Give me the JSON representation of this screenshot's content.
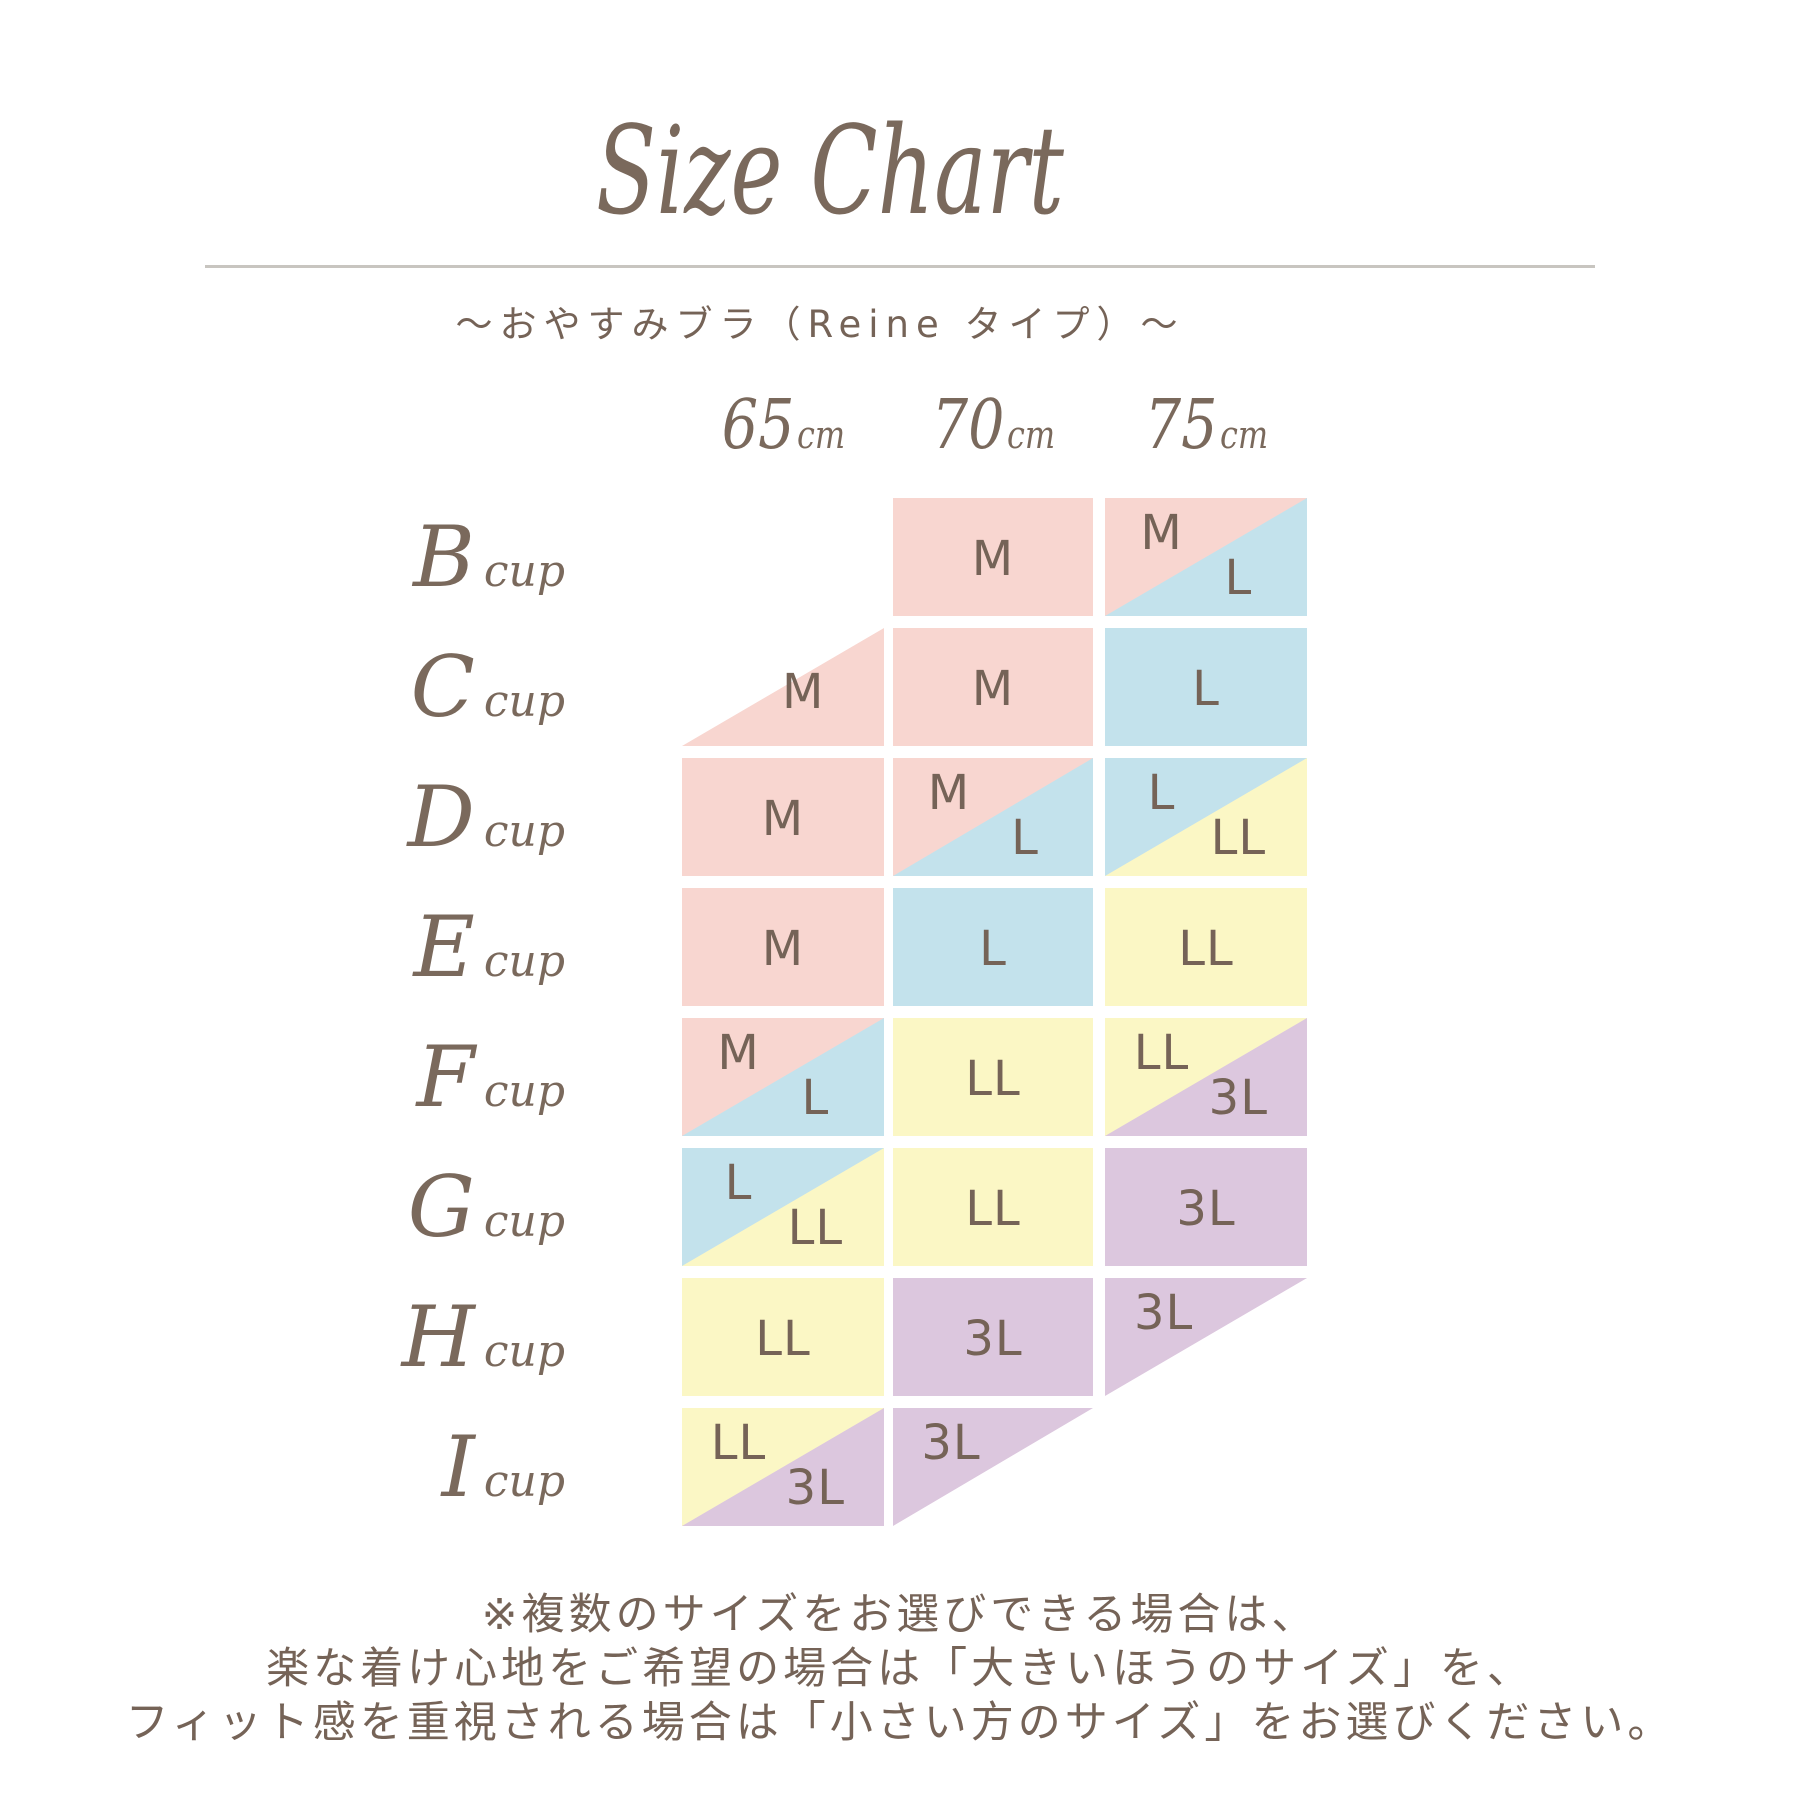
{
  "header": {
    "title": "Size Chart",
    "subtitle": "〜おやすみブラ（Reine タイプ）〜"
  },
  "chart_data": {
    "type": "table",
    "title": "Size Chart",
    "subtitle": "〜おやすみブラ（Reine タイプ）〜",
    "band_sizes": [
      {
        "num": "65",
        "unit": "cm"
      },
      {
        "num": "70",
        "unit": "cm"
      },
      {
        "num": "75",
        "unit": "cm"
      }
    ],
    "size_colors": {
      "M": "#f8d6d0",
      "L": "#c3e2ec",
      "LL": "#fbf7c5",
      "3L": "#dcc7de"
    },
    "cup_rows": [
      {
        "letter": "B",
        "word": "cup",
        "cells": [
          {
            "type": "empty"
          },
          {
            "type": "full",
            "size": "M"
          },
          {
            "type": "split",
            "size_a": "M",
            "size_b": "L"
          }
        ]
      },
      {
        "letter": "C",
        "word": "cup",
        "cells": [
          {
            "type": "tri-br",
            "size": "M"
          },
          {
            "type": "full",
            "size": "M"
          },
          {
            "type": "full",
            "size": "L"
          }
        ]
      },
      {
        "letter": "D",
        "word": "cup",
        "cells": [
          {
            "type": "full",
            "size": "M"
          },
          {
            "type": "split",
            "size_a": "M",
            "size_b": "L"
          },
          {
            "type": "split",
            "size_a": "L",
            "size_b": "LL"
          }
        ]
      },
      {
        "letter": "E",
        "word": "cup",
        "cells": [
          {
            "type": "full",
            "size": "M"
          },
          {
            "type": "full",
            "size": "L"
          },
          {
            "type": "full",
            "size": "LL"
          }
        ]
      },
      {
        "letter": "F",
        "word": "cup",
        "cells": [
          {
            "type": "split",
            "size_a": "M",
            "size_b": "L"
          },
          {
            "type": "full",
            "size": "LL"
          },
          {
            "type": "split",
            "size_a": "LL",
            "size_b": "3L"
          }
        ]
      },
      {
        "letter": "G",
        "word": "cup",
        "cells": [
          {
            "type": "split",
            "size_a": "L",
            "size_b": "LL"
          },
          {
            "type": "full",
            "size": "LL"
          },
          {
            "type": "full",
            "size": "3L"
          }
        ]
      },
      {
        "letter": "H",
        "word": "cup",
        "cells": [
          {
            "type": "full",
            "size": "LL"
          },
          {
            "type": "full",
            "size": "3L"
          },
          {
            "type": "tri-tl",
            "size": "3L"
          }
        ]
      },
      {
        "letter": "I",
        "word": "cup",
        "cells": [
          {
            "type": "split",
            "size_a": "LL",
            "size_b": "3L"
          },
          {
            "type": "tri-tl",
            "size": "3L"
          },
          {
            "type": "empty"
          }
        ]
      }
    ]
  },
  "footer": {
    "lines": [
      "※複数のサイズをお選びできる場合は、",
      "楽な着け心地をご希望の場合は「大きいほうのサイズ」を、",
      "フィット感を重視される場合は「小さい方のサイズ」をお選びください。"
    ]
  }
}
